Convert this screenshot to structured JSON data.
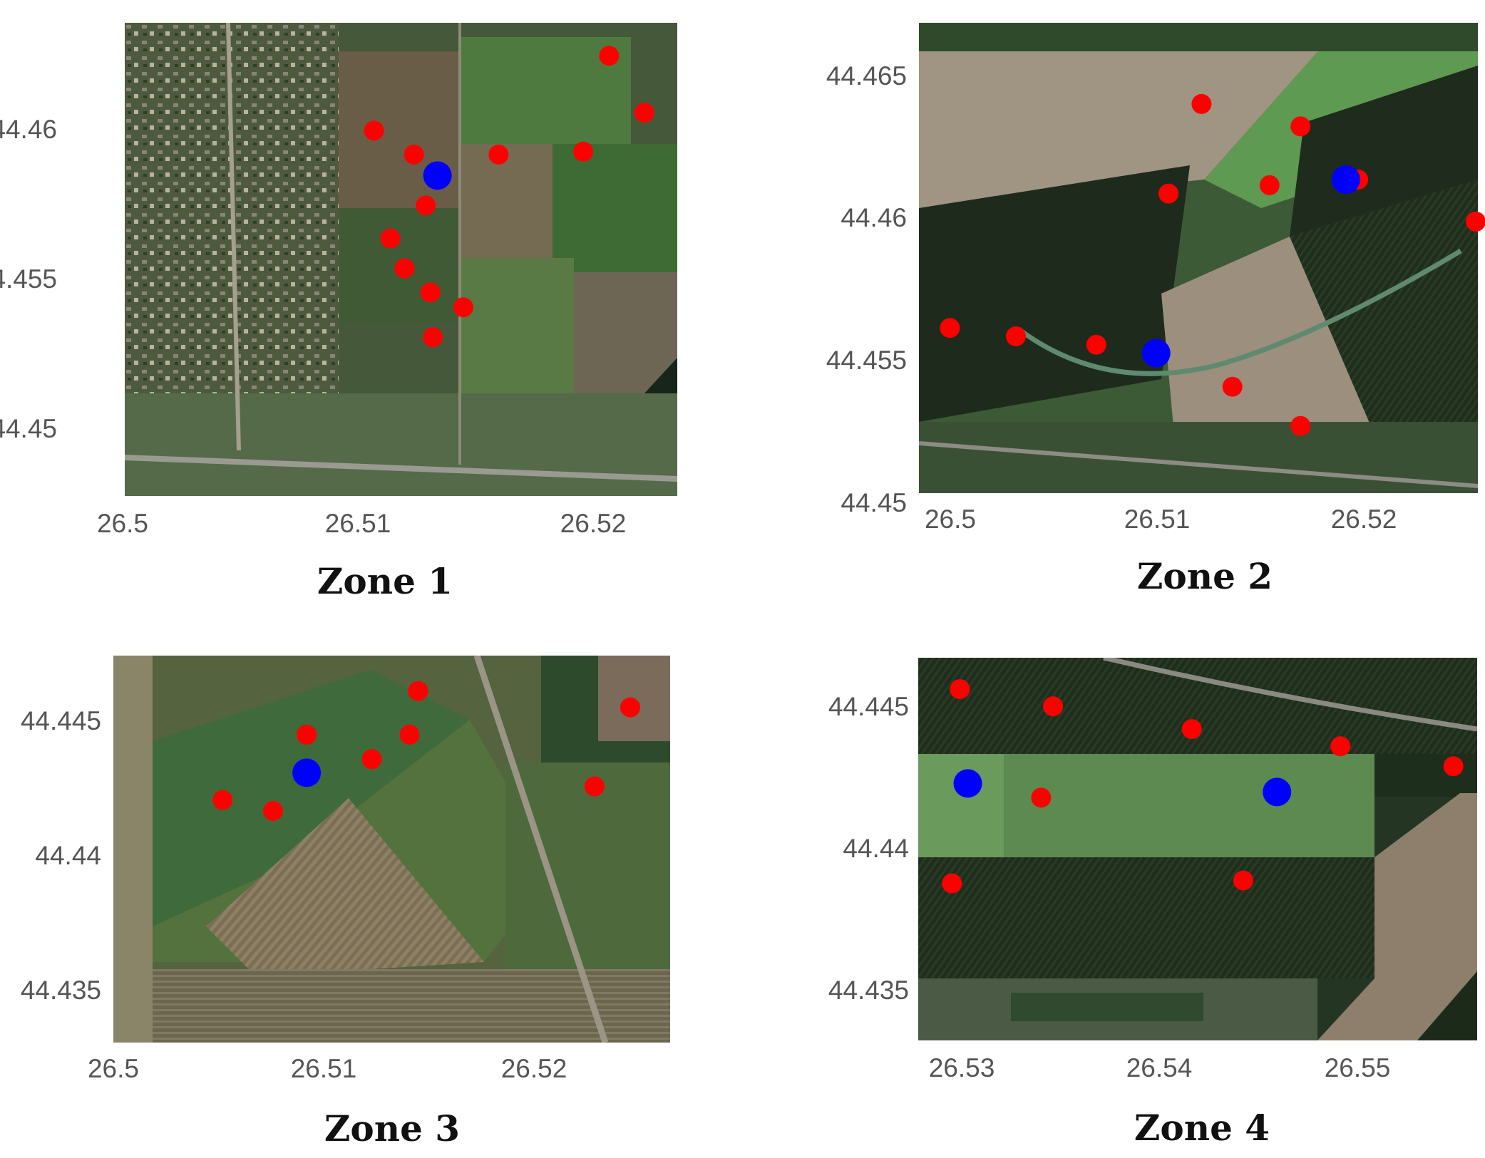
{
  "colors": {
    "station_marker": "#ff0000",
    "sensor_marker": "#0000ff"
  },
  "chart_data": [
    {
      "type": "scatter",
      "title": "Zone 1",
      "background": "satellite imagery",
      "xlim": [
        26.5,
        26.5235
      ],
      "ylim": [
        44.4477,
        44.4635
      ],
      "xticks": [
        "26.5",
        "26.51",
        "26.52"
      ],
      "yticks": [
        "44.46",
        "44.455",
        "44.45"
      ],
      "series": [
        {
          "color": "#ff0000",
          "points": [
            [
              26.5206,
              44.4624
            ],
            [
              26.5221,
              44.4605
            ],
            [
              26.5106,
              44.4599
            ],
            [
              26.5123,
              44.4591
            ],
            [
              26.5159,
              44.4591
            ],
            [
              26.5195,
              44.4592
            ],
            [
              26.5128,
              44.4574
            ],
            [
              26.5113,
              44.4563
            ],
            [
              26.5119,
              44.4553
            ],
            [
              26.513,
              44.4545
            ],
            [
              26.5144,
              44.454
            ],
            [
              26.5131,
              44.453
            ]
          ]
        },
        {
          "color": "#0000ff",
          "points": [
            [
              26.5133,
              44.4584
            ]
          ]
        }
      ]
    },
    {
      "type": "scatter",
      "title": "Zone 2",
      "background": "satellite imagery",
      "xlim": [
        26.4985,
        26.5256
      ],
      "ylim": [
        44.45,
        44.4668
      ],
      "xticks": [
        "26.5",
        "26.51",
        "26.52"
      ],
      "yticks": [
        "44.465",
        "44.46",
        "44.455",
        "44.45"
      ],
      "series": [
        {
          "color": "#ff0000",
          "points": [
            [
              26.5122,
              44.4639
            ],
            [
              26.517,
              44.4631
            ],
            [
              26.5155,
              44.461
            ],
            [
              26.5198,
              44.4612
            ],
            [
              26.5106,
              44.4607
            ],
            [
              26.5255,
              44.4597
            ],
            [
              26.5,
              44.4559
            ],
            [
              26.5032,
              44.4556
            ],
            [
              26.5071,
              44.4553
            ],
            [
              26.5137,
              44.4538
            ],
            [
              26.517,
              44.4524
            ]
          ]
        },
        {
          "color": "#0000ff",
          "points": [
            [
              26.5192,
              44.4612
            ],
            [
              26.51,
              44.455
            ]
          ]
        }
      ]
    },
    {
      "type": "scatter",
      "title": "Zone 3",
      "background": "satellite imagery",
      "xlim": [
        26.5,
        26.5265
      ],
      "ylim": [
        44.4332,
        44.4474
      ],
      "xticks": [
        "26.5",
        "26.51",
        "26.52"
      ],
      "yticks": [
        "44.445",
        "44.44",
        "44.435"
      ],
      "series": [
        {
          "color": "#ff0000",
          "points": [
            [
              26.5145,
              44.4461
            ],
            [
              26.5246,
              44.4455
            ],
            [
              26.5092,
              44.4445
            ],
            [
              26.5141,
              44.4445
            ],
            [
              26.5123,
              44.4436
            ],
            [
              26.5229,
              44.4426
            ],
            [
              26.5052,
              44.4421
            ],
            [
              26.5076,
              44.4417
            ]
          ]
        },
        {
          "color": "#0000ff",
          "points": [
            [
              26.5092,
              44.4431
            ]
          ]
        }
      ]
    },
    {
      "type": "scatter",
      "title": "Zone 4",
      "background": "satellite imagery",
      "xlim": [
        26.5279,
        26.5561
      ],
      "ylim": [
        44.4333,
        44.4467
      ],
      "xticks": [
        "26.53",
        "26.54",
        "26.55"
      ],
      "yticks": [
        "44.445",
        "44.44",
        "44.435"
      ],
      "series": [
        {
          "color": "#ff0000",
          "points": [
            [
              26.53,
              44.4456
            ],
            [
              26.5347,
              44.445
            ],
            [
              26.5417,
              44.4442
            ],
            [
              26.5492,
              44.4436
            ],
            [
              26.5549,
              44.4429
            ],
            [
              26.5341,
              44.4418
            ],
            [
              26.5296,
              44.4388
            ],
            [
              26.5443,
              44.4389
            ]
          ]
        },
        {
          "color": "#0000ff",
          "points": [
            [
              26.5304,
              44.4423
            ],
            [
              26.546,
              44.442
            ]
          ]
        }
      ]
    }
  ]
}
